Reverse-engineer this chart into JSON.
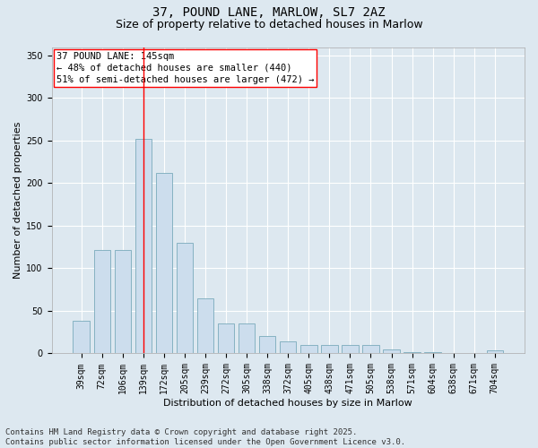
{
  "title": "37, POUND LANE, MARLOW, SL7 2AZ",
  "subtitle": "Size of property relative to detached houses in Marlow",
  "xlabel": "Distribution of detached houses by size in Marlow",
  "ylabel": "Number of detached properties",
  "categories": [
    "39sqm",
    "72sqm",
    "106sqm",
    "139sqm",
    "172sqm",
    "205sqm",
    "239sqm",
    "272sqm",
    "305sqm",
    "338sqm",
    "372sqm",
    "405sqm",
    "438sqm",
    "471sqm",
    "505sqm",
    "538sqm",
    "571sqm",
    "604sqm",
    "638sqm",
    "671sqm",
    "704sqm"
  ],
  "values": [
    38,
    122,
    122,
    252,
    212,
    130,
    65,
    35,
    35,
    21,
    14,
    10,
    10,
    10,
    10,
    5,
    2,
    2,
    1,
    1,
    4
  ],
  "bar_color": "#ccdded",
  "bar_edge_color": "#7aaabb",
  "vline_x_index": 3.0,
  "vline_color": "red",
  "annotation_text": "37 POUND LANE: 145sqm\n← 48% of detached houses are smaller (440)\n51% of semi-detached houses are larger (472) →",
  "annotation_box_color": "white",
  "annotation_box_edge_color": "red",
  "annotation_fontsize": 7.5,
  "title_fontsize": 10,
  "subtitle_fontsize": 9,
  "axis_label_fontsize": 8,
  "tick_fontsize": 7,
  "ylabel_fontsize": 8,
  "footer_text": "Contains HM Land Registry data © Crown copyright and database right 2025.\nContains public sector information licensed under the Open Government Licence v3.0.",
  "footer_fontsize": 6.5,
  "ylim": [
    0,
    360
  ],
  "bg_color": "#dde8f0",
  "plot_bg_color": "#dde8f0",
  "grid_color": "white"
}
